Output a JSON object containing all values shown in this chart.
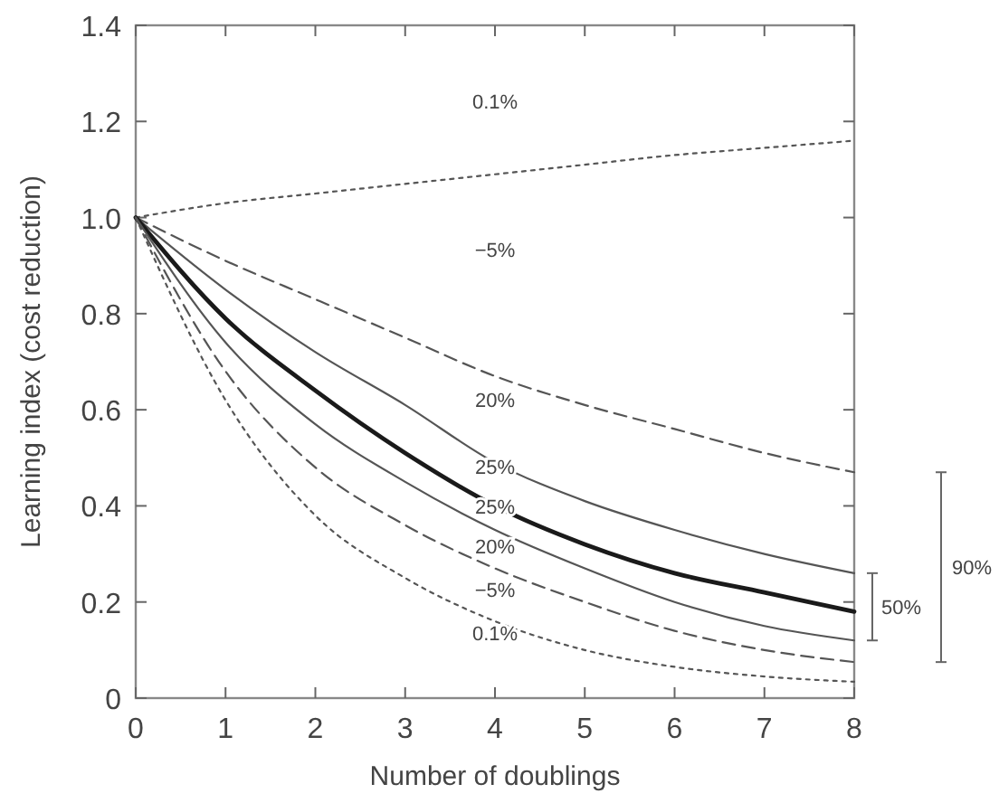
{
  "chart_data": {
    "type": "line",
    "xlabel": "Number of doublings",
    "ylabel": "Learning index (cost reduction)",
    "x": [
      0,
      1,
      2,
      3,
      4,
      5,
      6,
      7,
      8
    ],
    "xlim": [
      0,
      8
    ],
    "xticks": [
      0,
      1,
      2,
      3,
      4,
      5,
      6,
      7,
      8
    ],
    "ylim": [
      0,
      1.4
    ],
    "yticks": [
      0,
      {
        "value": 0.2,
        "label": "0.2"
      },
      {
        "value": 0.4,
        "label": "0.4"
      },
      {
        "value": 0.6,
        "label": "0.6"
      },
      {
        "value": 0.8,
        "label": "0.8"
      },
      {
        "value": 1,
        "label": "1.0"
      },
      {
        "value": 1.2,
        "label": "1.2"
      },
      {
        "value": 1.4,
        "label": "1.4"
      }
    ],
    "grid": false,
    "marker": "none",
    "series": [
      {
        "color": "#555555",
        "line_style": "dotted",
        "values": [
          1,
          1.03,
          1.05,
          1.07,
          1.09,
          1.11,
          1.13,
          1.145,
          1.16
        ]
      },
      {
        "color": "#555555",
        "line_style": "dashed",
        "values": [
          1,
          0.91,
          0.83,
          0.75,
          0.67,
          0.61,
          0.56,
          0.51,
          0.47
        ]
      },
      {
        "color": "#555555",
        "line_style": "solid",
        "values": [
          1,
          0.85,
          0.72,
          0.61,
          0.49,
          0.41,
          0.35,
          0.3,
          0.26
        ]
      },
      {
        "color": "#1a1a1a",
        "line_style": "solid",
        "values": [
          1,
          0.79,
          0.64,
          0.51,
          0.4,
          0.32,
          0.26,
          0.22,
          0.18
        ]
      },
      {
        "color": "#555555",
        "line_style": "solid",
        "values": [
          1,
          0.74,
          0.57,
          0.45,
          0.35,
          0.27,
          0.2,
          0.15,
          0.12
        ]
      },
      {
        "color": "#555555",
        "line_style": "dashed",
        "values": [
          1,
          0.68,
          0.48,
          0.36,
          0.27,
          0.2,
          0.14,
          0.1,
          0.075
        ]
      },
      {
        "color": "#555555",
        "line_style": "dotted",
        "values": [
          1,
          0.62,
          0.38,
          0.25,
          0.16,
          0.1,
          0.065,
          0.045,
          0.034
        ]
      }
    ],
    "annotations": [
      "0.1%",
      "−5%",
      "20%",
      "25%",
      "25%",
      "20%",
      "−5%",
      "0.1%",
      "90%",
      "50%"
    ]
  }
}
